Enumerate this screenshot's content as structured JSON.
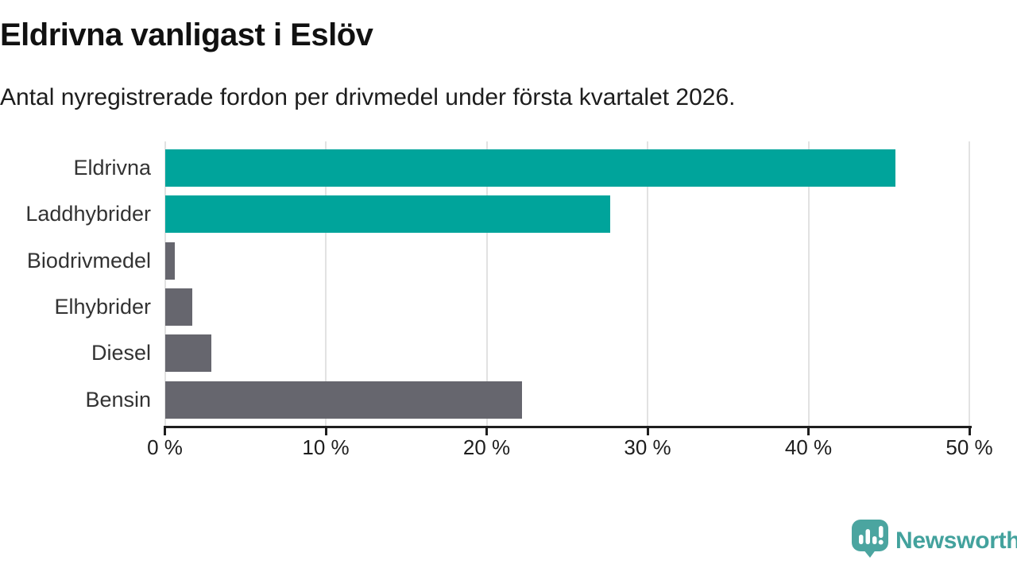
{
  "header": {
    "title": "Eldrivna vanligast i Eslöv",
    "subtitle": "Antal nyregistrerade fordon per drivmedel under första kvartalet 2026."
  },
  "chart_data": {
    "type": "bar",
    "orientation": "horizontal",
    "title": "Eldrivna vanligast i Eslöv",
    "subtitle": "Antal nyregistrerade fordon per drivmedel under första kvartalet 2026.",
    "categories": [
      "Eldrivna",
      "Laddhybrider",
      "Biodrivmedel",
      "Elhybrider",
      "Diesel",
      "Bensin"
    ],
    "values": [
      45.4,
      27.7,
      0.6,
      1.7,
      2.9,
      22.2
    ],
    "unit": "%",
    "bar_colors": [
      "#00a49b",
      "#00a49b",
      "#66666e",
      "#66666e",
      "#66666e",
      "#66666e"
    ],
    "xlabel": "",
    "ylabel": "",
    "xlim": [
      0,
      50
    ],
    "x_ticks": [
      0,
      10,
      20,
      30,
      40,
      50
    ],
    "x_tick_labels": [
      "0 %",
      "10 %",
      "20 %",
      "30 %",
      "40 %",
      "50 %"
    ],
    "grid": "vertical-only",
    "legend": "none"
  },
  "colors": {
    "teal": "#00a49b",
    "gray": "#66666e",
    "gridline": "#e2e2e2",
    "axis": "#1e1e1e",
    "brand_teal": "#43a29d"
  },
  "footer": {
    "brand": "Newsworthy",
    "logo_icon": "newsworthy-speech-bubble-chart-icon"
  }
}
